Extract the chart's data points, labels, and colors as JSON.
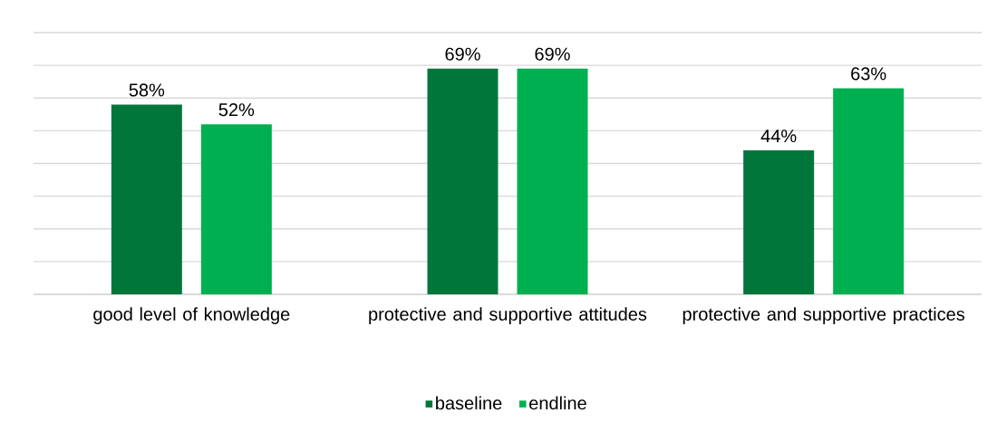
{
  "chart_data": {
    "type": "bar",
    "categories": [
      "good level of knowledge",
      "protective and supportive attitudes",
      "protective and supportive practices"
    ],
    "series": [
      {
        "name": "baseline",
        "color": "#00763b",
        "values": [
          58,
          69,
          44
        ],
        "value_labels": [
          "58%",
          "69%",
          "44%"
        ]
      },
      {
        "name": "endline",
        "color": "#00b050",
        "values": [
          52,
          69,
          63
        ],
        "value_labels": [
          "52%",
          "69%",
          "63%"
        ]
      }
    ],
    "ylim": [
      0,
      80
    ],
    "yticks": [
      {
        "value": 0,
        "label": null
      },
      {
        "value": 10,
        "label": null
      },
      {
        "value": 20,
        "label": null
      },
      {
        "value": 30,
        "label": null
      },
      {
        "value": 40,
        "label": null
      },
      {
        "value": 50,
        "label": null
      },
      {
        "value": 60,
        "label": null
      },
      {
        "value": 70,
        "label": null
      },
      {
        "value": 80,
        "label": null
      }
    ],
    "tick_labels": "x",
    "grid": "y",
    "legend": "bottom"
  }
}
